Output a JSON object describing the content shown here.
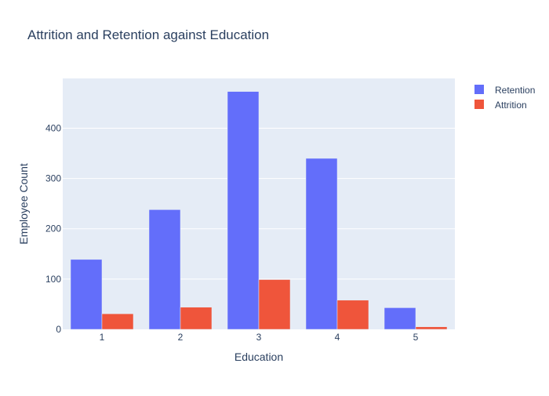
{
  "chart_data": {
    "type": "bar",
    "title": "Attrition and Retention against Education",
    "xlabel": "Education",
    "ylabel": "Employee Count",
    "categories": [
      "1",
      "2",
      "3",
      "4",
      "5"
    ],
    "series": [
      {
        "name": "Retention",
        "values": [
          139,
          238,
          473,
          340,
          43
        ],
        "color": "#636efa"
      },
      {
        "name": "Attrition",
        "values": [
          31,
          44,
          99,
          58,
          5
        ],
        "color": "#ef553b"
      }
    ],
    "ylim": [
      0,
      499
    ],
    "yticks": [
      0,
      100,
      200,
      300,
      400
    ],
    "grid": true,
    "legend_position": "top-right",
    "plot_background": "#e5ecf6",
    "grid_color": "#ffffff",
    "text_color": "#2a3f5f"
  }
}
